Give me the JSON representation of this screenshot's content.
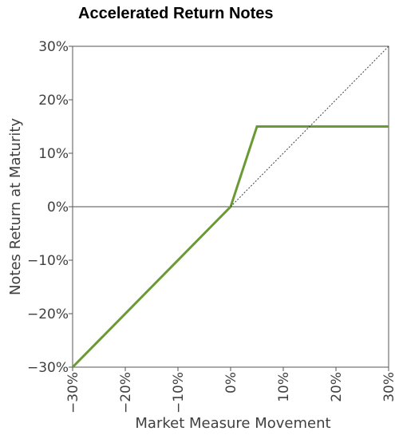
{
  "chart_data": {
    "type": "line",
    "title": "Accelerated Return Notes",
    "xlabel": "Market Measure Movement",
    "ylabel": "Notes Return at Maturity",
    "xlim": [
      -30,
      30
    ],
    "ylim": [
      -30,
      30
    ],
    "x_ticks": [
      "−30%",
      "−20%",
      "−10%",
      "0%",
      "10%",
      "20%",
      "30%"
    ],
    "x_tick_values": [
      -30,
      -20,
      -10,
      0,
      10,
      20,
      30
    ],
    "y_ticks": [
      "30%",
      "20%",
      "10%",
      "0%",
      "−10%",
      "−20%",
      "−30%"
    ],
    "y_tick_values": [
      30,
      20,
      10,
      0,
      -10,
      -20,
      -30
    ],
    "series": [
      {
        "values_xy": [
          [
            -30,
            -30
          ],
          [
            0,
            0
          ],
          [
            5,
            15
          ],
          [
            30,
            15
          ]
        ],
        "color": "#6a9a35",
        "style": "solid"
      },
      {
        "values_xy": [
          [
            0,
            0
          ],
          [
            30,
            30
          ]
        ],
        "color": "#404040",
        "style": "dotted"
      }
    ],
    "reference_line_y": 0,
    "grid": false
  }
}
